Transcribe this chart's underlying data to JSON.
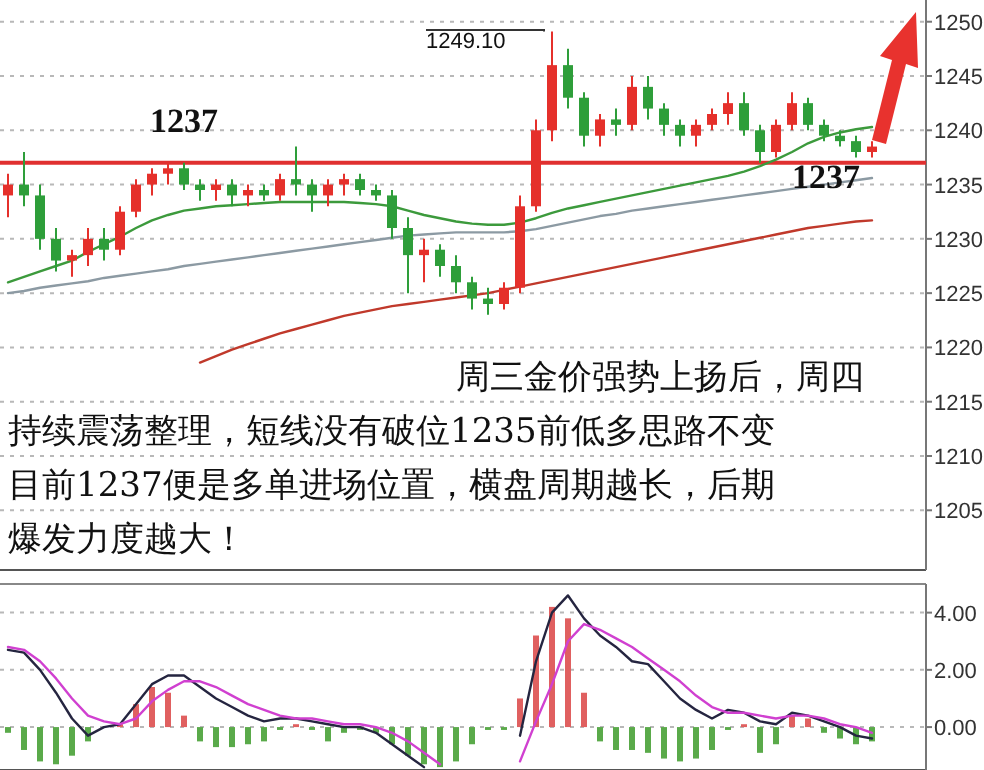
{
  "chart_data": [
    {
      "type": "candlestick",
      "categories": [
        null,
        null,
        null,
        null,
        null,
        null,
        null,
        null,
        null,
        null,
        null,
        null,
        null,
        null,
        null,
        null,
        null,
        null,
        null,
        null,
        null,
        null,
        null,
        null,
        null,
        null,
        null,
        null,
        null,
        null,
        null,
        null,
        null,
        null,
        null,
        null,
        null,
        null,
        null,
        null,
        null,
        null,
        null,
        null,
        null,
        null,
        null,
        null,
        null,
        null,
        null,
        null,
        null,
        null,
        null
      ],
      "ohlc": [
        [
          1234,
          1236,
          1232,
          1235
        ],
        [
          1235,
          1238,
          1233,
          1234
        ],
        [
          1234,
          1235,
          1229,
          1230
        ],
        [
          1230,
          1231,
          1227,
          1228
        ],
        [
          1228,
          1229,
          1226.5,
          1228.5
        ],
        [
          1228.5,
          1231,
          1227.5,
          1230
        ],
        [
          1230,
          1231,
          1228,
          1229
        ],
        [
          1229,
          1233,
          1228.5,
          1232.5
        ],
        [
          1232.5,
          1235.5,
          1232,
          1235
        ],
        [
          1235,
          1236.5,
          1234,
          1236
        ],
        [
          1236,
          1237,
          1235,
          1236.5
        ],
        [
          1236.5,
          1237,
          1234.5,
          1235
        ],
        [
          1235,
          1235.5,
          1233.5,
          1234.5
        ],
        [
          1234.5,
          1235.5,
          1233.5,
          1235
        ],
        [
          1235,
          1235.5,
          1233,
          1234
        ],
        [
          1234,
          1235,
          1233,
          1234.5
        ],
        [
          1234.5,
          1235,
          1233.5,
          1234
        ],
        [
          1234,
          1236,
          1233.5,
          1235.5
        ],
        [
          1235.5,
          1238.5,
          1234,
          1235
        ],
        [
          1235,
          1235.5,
          1232.5,
          1234
        ],
        [
          1234,
          1235.5,
          1233,
          1235
        ],
        [
          1235,
          1236,
          1234,
          1235.5
        ],
        [
          1235.5,
          1236,
          1234,
          1234.5
        ],
        [
          1234.5,
          1235,
          1233.5,
          1234
        ],
        [
          1234,
          1234.5,
          1230,
          1231
        ],
        [
          1231,
          1232,
          1225,
          1228.5
        ],
        [
          1228.5,
          1230,
          1226,
          1229
        ],
        [
          1229,
          1229.5,
          1226.5,
          1227.5
        ],
        [
          1227.5,
          1228.5,
          1225,
          1226
        ],
        [
          1226,
          1226.5,
          1223.5,
          1224.5
        ],
        [
          1224.5,
          1225.5,
          1223,
          1224
        ],
        [
          1224,
          1226,
          1223.5,
          1225.5
        ],
        [
          1225.5,
          1234,
          1225,
          1233
        ],
        [
          1233,
          1241,
          1232.5,
          1240
        ],
        [
          1240,
          1249.1,
          1239,
          1246
        ],
        [
          1246,
          1247.5,
          1242,
          1243
        ],
        [
          1243,
          1243.5,
          1238.5,
          1239.5
        ],
        [
          1239.5,
          1241.5,
          1238.5,
          1241
        ],
        [
          1241,
          1242,
          1239.5,
          1240.5
        ],
        [
          1240.5,
          1245,
          1240,
          1244
        ],
        [
          1244,
          1245,
          1241,
          1242
        ],
        [
          1242,
          1242.5,
          1239.5,
          1240.5
        ],
        [
          1240.5,
          1241,
          1238.5,
          1239.5
        ],
        [
          1239.5,
          1241,
          1238.5,
          1240.5
        ],
        [
          1240.5,
          1242,
          1240,
          1241.5
        ],
        [
          1241.5,
          1243.5,
          1240.5,
          1242.5
        ],
        [
          1242.5,
          1243.5,
          1239.5,
          1240
        ],
        [
          1240,
          1240.5,
          1237,
          1238
        ],
        [
          1238,
          1241,
          1237.5,
          1240.5
        ],
        [
          1240.5,
          1243.5,
          1240,
          1242.5
        ],
        [
          1242.5,
          1243,
          1240,
          1240.5
        ],
        [
          1240.5,
          1241,
          1239,
          1239.5
        ],
        [
          1239.5,
          1240,
          1238.5,
          1239
        ],
        [
          1239,
          1239.5,
          1237.5,
          1238
        ],
        [
          1238,
          1239,
          1237.5,
          1238.5
        ]
      ],
      "series": [
        {
          "type": "line",
          "color": "#c0392b",
          "values": [
            null,
            null,
            null,
            null,
            null,
            null,
            null,
            null,
            null,
            null,
            null,
            null,
            1218.6,
            1219.2,
            1219.8,
            1220.3,
            1220.8,
            1221.3,
            1221.7,
            1222.1,
            1222.5,
            1222.9,
            1223.2,
            1223.5,
            1223.8,
            1224,
            1224.2,
            1224.4,
            1224.6,
            1224.8,
            1225,
            1225.3,
            1225.6,
            1225.9,
            1226.2,
            1226.5,
            1226.8,
            1227.1,
            1227.4,
            1227.7,
            1228,
            1228.3,
            1228.6,
            1228.9,
            1229.2,
            1229.5,
            1229.8,
            1230.1,
            1230.4,
            1230.7,
            1231,
            1231.2,
            1231.4,
            1231.6,
            1231.7
          ]
        },
        {
          "type": "line",
          "color": "#8c9aa3",
          "values": [
            1225,
            1225.2,
            1225.5,
            1225.7,
            1225.9,
            1226.1,
            1226.4,
            1226.6,
            1226.8,
            1227,
            1227.2,
            1227.5,
            1227.7,
            1227.9,
            1228.1,
            1228.3,
            1228.5,
            1228.7,
            1228.9,
            1229.1,
            1229.3,
            1229.5,
            1229.7,
            1229.9,
            1230.1,
            1230.3,
            1230.4,
            1230.5,
            1230.6,
            1230.6,
            1230.6,
            1230.6,
            1230.7,
            1230.9,
            1231.2,
            1231.5,
            1231.8,
            1232.1,
            1232.3,
            1232.6,
            1232.8,
            1233,
            1233.2,
            1233.4,
            1233.6,
            1233.8,
            1234,
            1234.2,
            1234.4,
            1234.6,
            1234.8,
            1235,
            1235.2,
            1235.4,
            1235.6
          ]
        },
        {
          "type": "line",
          "color": "#3c9a3c",
          "values": [
            1226,
            1226.5,
            1227,
            1227.5,
            1228,
            1228.8,
            1229.5,
            1230.2,
            1231,
            1231.7,
            1232.2,
            1232.6,
            1232.8,
            1233,
            1233.1,
            1233.2,
            1233.3,
            1233.4,
            1233.4,
            1233.4,
            1233.4,
            1233.4,
            1233.3,
            1233.2,
            1233,
            1232.6,
            1232.2,
            1231.9,
            1231.6,
            1231.4,
            1231.3,
            1231.3,
            1231.5,
            1231.9,
            1232.4,
            1232.8,
            1233.1,
            1233.4,
            1233.7,
            1234,
            1234.3,
            1234.6,
            1234.9,
            1235.2,
            1235.5,
            1235.8,
            1236.2,
            1236.7,
            1237.3,
            1238,
            1238.8,
            1239.4,
            1239.8,
            1240.1,
            1240.3
          ]
        }
      ],
      "ylim": [
        1199.5,
        1252
      ],
      "yticks": [
        1205,
        1210,
        1215,
        1220,
        1225,
        1230,
        1235,
        1240,
        1245,
        1250
      ],
      "grid": "y",
      "tick_labels": "y",
      "ref_lines": [
        {
          "axis": "y",
          "value": 1237,
          "color": "#e03030"
        }
      ],
      "annotations": [
        "1249.10",
        "1237",
        "1237",
        "周三金价强势上扬后，周四",
        "持续震荡整理，短线没有破位1235前低多思路不变",
        "目前1237便是多单进场位置，横盘周期越长，后期",
        "爆发力度越大！"
      ]
    },
    {
      "type": "bar",
      "categories": [
        null,
        null,
        null,
        null,
        null,
        null,
        null,
        null,
        null,
        null,
        null,
        null,
        null,
        null,
        null,
        null,
        null,
        null,
        null,
        null,
        null,
        null,
        null,
        null,
        null,
        null,
        null,
        null,
        null,
        null,
        null,
        null,
        null,
        null,
        null,
        null,
        null,
        null,
        null,
        null,
        null,
        null,
        null,
        null,
        null,
        null,
        null,
        null,
        null,
        null,
        null,
        null,
        null,
        null,
        null
      ],
      "series": [
        {
          "type": "bar",
          "values": [
            -0.2,
            -0.8,
            -1.2,
            -1.3,
            -1.0,
            -0.5,
            null,
            0.1,
            0.8,
            1.4,
            1.2,
            0.4,
            -0.5,
            -0.7,
            -0.7,
            -0.6,
            -0.5,
            -0.1,
            0.1,
            -0.1,
            -0.5,
            -0.2,
            -0.1,
            -0.2,
            -0.6,
            -1.0,
            -1.3,
            -1.4,
            -1.2,
            -0.6,
            -0.1,
            -0.1,
            1.0,
            3.2,
            4.2,
            3.8,
            1.2,
            -0.5,
            -0.8,
            -0.8,
            -0.9,
            -1.1,
            -1.2,
            -1.1,
            -0.8,
            -0.1,
            0.1,
            -0.9,
            -0.6,
            0.4,
            0.3,
            -0.2,
            -0.4,
            -0.6,
            -0.5
          ],
          "colors": [
            "#5aaa4a",
            "#5aaa4a",
            "#5aaa4a",
            "#5aaa4a",
            "#5aaa4a",
            "#5aaa4a",
            null,
            "#e06060",
            "#e06060",
            "#e06060",
            "#e06060",
            "#e06060",
            "#5aaa4a",
            "#5aaa4a",
            "#5aaa4a",
            "#5aaa4a",
            "#5aaa4a",
            "#5aaa4a",
            "#e06060",
            "#5aaa4a",
            "#5aaa4a",
            "#5aaa4a",
            "#5aaa4a",
            "#5aaa4a",
            "#5aaa4a",
            "#5aaa4a",
            "#5aaa4a",
            "#5aaa4a",
            "#5aaa4a",
            "#5aaa4a",
            "#5aaa4a",
            "#5aaa4a",
            "#e06060",
            "#e06060",
            "#e06060",
            "#e06060",
            "#e06060",
            "#5aaa4a",
            "#5aaa4a",
            "#5aaa4a",
            "#5aaa4a",
            "#5aaa4a",
            "#5aaa4a",
            "#5aaa4a",
            "#5aaa4a",
            "#5aaa4a",
            "#e06060",
            "#5aaa4a",
            "#5aaa4a",
            "#e06060",
            "#e06060",
            "#5aaa4a",
            "#5aaa4a",
            "#5aaa4a",
            "#5aaa4a"
          ]
        },
        {
          "type": "line",
          "color": "#252540",
          "values": [
            2.7,
            2.6,
            2.0,
            1.2,
            0.3,
            -0.3,
            0.0,
            0.1,
            0.8,
            1.5,
            1.8,
            1.8,
            1.4,
            1.0,
            0.7,
            0.4,
            0.2,
            0.3,
            0.3,
            0.2,
            0.1,
            0.0,
            0.0,
            -0.2,
            -0.6,
            -1.0,
            -1.4,
            null,
            null,
            null,
            null,
            null,
            -0.3,
            2.3,
            4.0,
            4.6,
            3.8,
            3.2,
            2.8,
            2.3,
            2.2,
            1.6,
            1.0,
            0.6,
            0.3,
            0.6,
            0.5,
            0.2,
            0.1,
            0.5,
            0.4,
            0.2,
            0.0,
            -0.3,
            -0.4
          ]
        },
        {
          "type": "line",
          "color": "#d040d0",
          "values": [
            2.8,
            2.7,
            2.3,
            1.7,
            1.0,
            0.4,
            0.2,
            0.1,
            0.3,
            0.9,
            1.3,
            1.6,
            1.6,
            1.4,
            1.1,
            0.8,
            0.6,
            0.4,
            0.3,
            0.3,
            0.2,
            0.1,
            0.1,
            0.0,
            -0.2,
            -0.5,
            -0.9,
            -1.3,
            null,
            null,
            null,
            null,
            -1.2,
            0.2,
            1.5,
            3.0,
            3.6,
            3.4,
            3.1,
            2.8,
            2.4,
            2.0,
            1.6,
            1.1,
            0.7,
            0.5,
            0.5,
            0.4,
            0.3,
            0.4,
            0.4,
            0.3,
            0.1,
            0.0,
            -0.2
          ]
        }
      ],
      "ylim": [
        -1.5,
        5
      ],
      "yticks": [
        {
          "value": 0,
          "label": "0.00"
        },
        {
          "value": 2,
          "label": "2.00"
        },
        {
          "value": 4,
          "label": "4.00"
        }
      ],
      "grid": "y",
      "tick_labels": "y"
    }
  ]
}
